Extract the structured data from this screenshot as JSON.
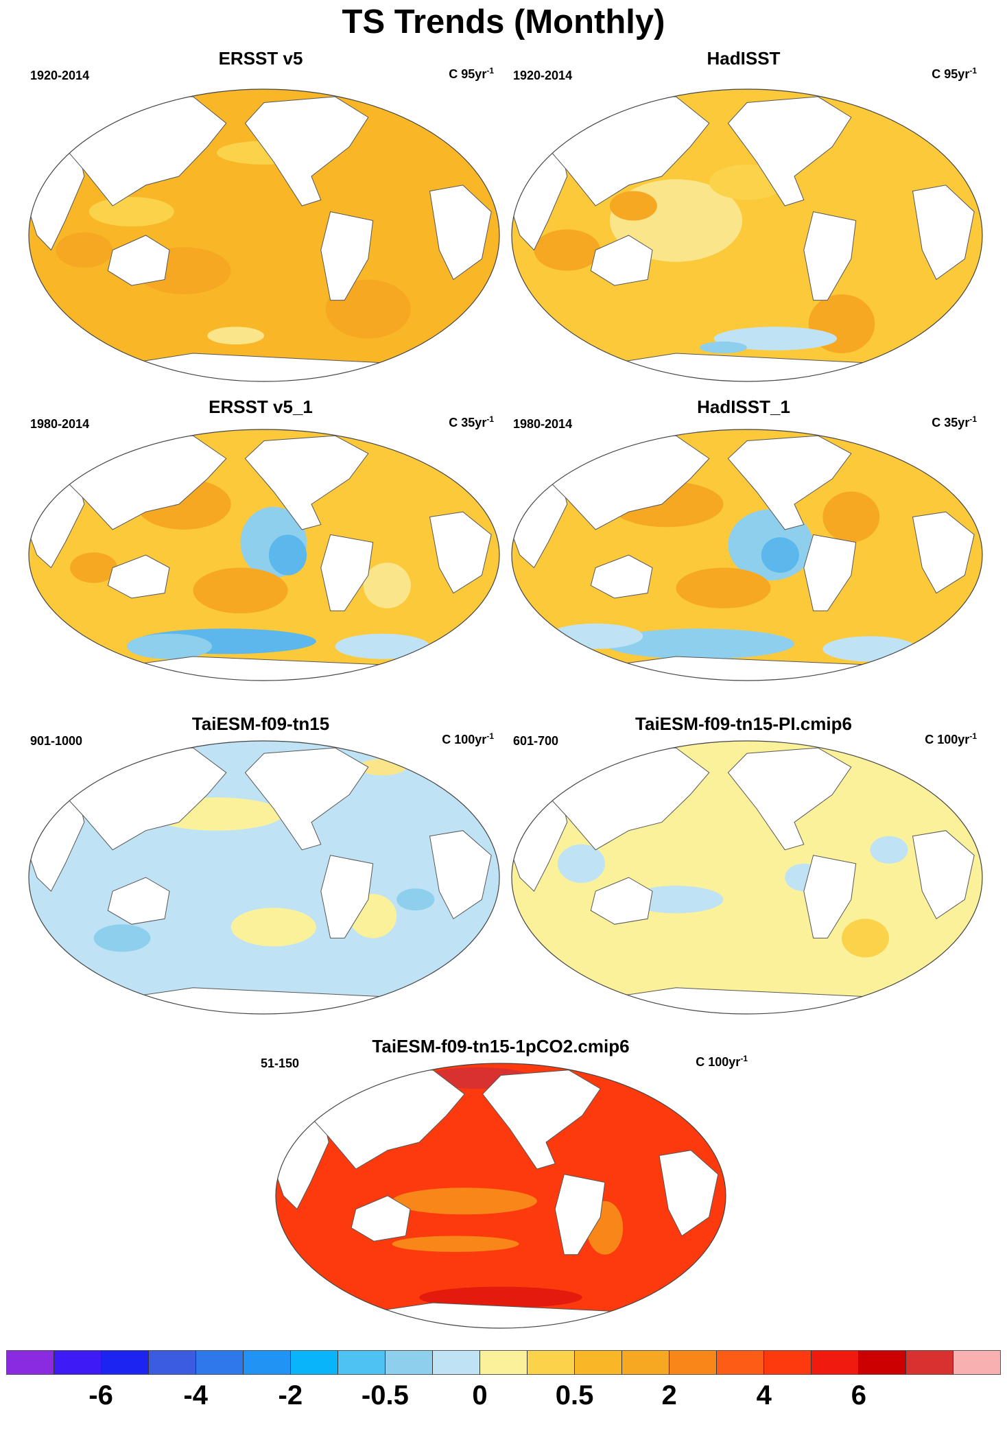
{
  "page": {
    "title": "TS Trends (Monthly)"
  },
  "panels": [
    {
      "title": "ERSST v5",
      "period": "1920-2014",
      "units": "C 95yr",
      "units_sup": "-1",
      "ocean_color": "#f9b627",
      "patches": [
        [
          "#fbd34a",
          0.22,
          0.42,
          0.09,
          0.05
        ],
        [
          "#fbd34a",
          0.5,
          0.22,
          0.1,
          0.04
        ],
        [
          "#f7a823",
          0.33,
          0.62,
          0.1,
          0.08
        ],
        [
          "#f7a823",
          0.72,
          0.75,
          0.09,
          0.1
        ],
        [
          "#8fcfee",
          0.64,
          0.13,
          0.03,
          0.06
        ],
        [
          "#f7a823",
          0.12,
          0.55,
          0.06,
          0.06
        ],
        [
          "#fbe58a",
          0.44,
          0.84,
          0.06,
          0.03
        ]
      ]
    },
    {
      "title": "HadISST",
      "period": "1920-2014",
      "units": "C 95yr",
      "units_sup": "-1",
      "ocean_color": "#fbc939",
      "patches": [
        [
          "#fbe58a",
          0.35,
          0.45,
          0.14,
          0.14
        ],
        [
          "#f7a823",
          0.12,
          0.55,
          0.07,
          0.07
        ],
        [
          "#f7a823",
          0.7,
          0.8,
          0.07,
          0.1
        ],
        [
          "#f7a823",
          0.26,
          0.4,
          0.05,
          0.05
        ],
        [
          "#bfe3f5",
          0.56,
          0.85,
          0.13,
          0.04
        ],
        [
          "#8fcfee",
          0.45,
          0.88,
          0.05,
          0.02
        ],
        [
          "#fbd34a",
          0.5,
          0.32,
          0.08,
          0.06
        ]
      ]
    },
    {
      "title": "ERSST v5_1",
      "period": "1980-2014",
      "units": "C 35yr",
      "units_sup": "-1",
      "ocean_color": "#fbc939",
      "patches": [
        [
          "#f7a823",
          0.33,
          0.3,
          0.1,
          0.1
        ],
        [
          "#8fcfee",
          0.52,
          0.45,
          0.07,
          0.14
        ],
        [
          "#5bb7ec",
          0.55,
          0.5,
          0.04,
          0.08
        ],
        [
          "#f7a823",
          0.45,
          0.64,
          0.1,
          0.09
        ],
        [
          "#5bb7ec",
          0.42,
          0.84,
          0.19,
          0.05
        ],
        [
          "#8fcfee",
          0.3,
          0.86,
          0.09,
          0.05
        ],
        [
          "#bfe3f5",
          0.75,
          0.86,
          0.1,
          0.05
        ],
        [
          "#fbe58a",
          0.76,
          0.62,
          0.05,
          0.09
        ],
        [
          "#f7a823",
          0.14,
          0.55,
          0.05,
          0.06
        ]
      ]
    },
    {
      "title": "HadISST_1",
      "period": "1980-2014",
      "units": "C 35yr",
      "units_sup": "-1",
      "ocean_color": "#fbc939",
      "patches": [
        [
          "#f7a823",
          0.33,
          0.3,
          0.12,
          0.09
        ],
        [
          "#8fcfee",
          0.55,
          0.46,
          0.09,
          0.14
        ],
        [
          "#5bb7ec",
          0.57,
          0.5,
          0.04,
          0.07
        ],
        [
          "#f7a823",
          0.45,
          0.63,
          0.1,
          0.08
        ],
        [
          "#8fcfee",
          0.4,
          0.85,
          0.2,
          0.06
        ],
        [
          "#bfe3f5",
          0.18,
          0.82,
          0.1,
          0.05
        ],
        [
          "#bfe3f5",
          0.76,
          0.87,
          0.1,
          0.05
        ],
        [
          "#f7a823",
          0.72,
          0.35,
          0.06,
          0.1
        ]
      ]
    },
    {
      "title": "TaiESM-f09-tn15",
      "period": "901-1000",
      "units": "C 100yr",
      "units_sup": "-1",
      "ocean_color": "#bfe3f5",
      "patches": [
        [
          "#fbf19b",
          0.4,
          0.27,
          0.14,
          0.06
        ],
        [
          "#fbf19b",
          0.1,
          0.15,
          0.12,
          0.05
        ],
        [
          "#fbf19b",
          0.52,
          0.68,
          0.09,
          0.07
        ],
        [
          "#fbf19b",
          0.73,
          0.64,
          0.05,
          0.08
        ],
        [
          "#8fcfee",
          0.2,
          0.72,
          0.06,
          0.05
        ],
        [
          "#8fcfee",
          0.82,
          0.58,
          0.04,
          0.04
        ],
        [
          "#fbe58a",
          0.75,
          0.1,
          0.05,
          0.03
        ]
      ]
    },
    {
      "title": "TaiESM-f09-tn15-PI.cmip6",
      "period": "601-700",
      "units": "C 100yr",
      "units_sup": "-1",
      "ocean_color": "#fbf19b",
      "patches": [
        [
          "#bfe3f5",
          0.35,
          0.58,
          0.1,
          0.05
        ],
        [
          "#bfe3f5",
          0.15,
          0.45,
          0.05,
          0.07
        ],
        [
          "#bfe3f5",
          0.62,
          0.5,
          0.04,
          0.05
        ],
        [
          "#fbd34a",
          0.75,
          0.72,
          0.05,
          0.07
        ],
        [
          "#fbd34a",
          0.25,
          0.28,
          0.06,
          0.04
        ],
        [
          "#bfe3f5",
          0.8,
          0.4,
          0.04,
          0.05
        ]
      ]
    },
    {
      "title": "TaiESM-f09-tn15-1pCO2.cmip6",
      "period": "51-150",
      "units": "C 100yr",
      "units_sup": "-1",
      "ocean_color": "#fc3a0e",
      "patches": [
        [
          "#f98619",
          0.42,
          0.52,
          0.16,
          0.05
        ],
        [
          "#f98619",
          0.4,
          0.68,
          0.14,
          0.03
        ],
        [
          "#f98619",
          0.73,
          0.62,
          0.04,
          0.1
        ],
        [
          "#e31a0c",
          0.22,
          0.15,
          0.16,
          0.06
        ],
        [
          "#d93030",
          0.45,
          0.06,
          0.12,
          0.04
        ],
        [
          "#e31a0c",
          0.5,
          0.88,
          0.18,
          0.04
        ],
        [
          "#fbc939",
          0.66,
          0.13,
          0.02,
          0.03
        ]
      ]
    }
  ],
  "colorbar": {
    "colors": [
      "#8a2be2",
      "#3e1af5",
      "#1c24f2",
      "#3b5be0",
      "#2f78ec",
      "#2193f5",
      "#0ab4fa",
      "#4ec3f3",
      "#8fcfee",
      "#bfe3f5",
      "#fbf19b",
      "#fbd34a",
      "#f9b627",
      "#f7a823",
      "#f98619",
      "#fc5c15",
      "#fc3a0e",
      "#f01a0f",
      "#cc0000",
      "#d93030",
      "#f9b0b0"
    ],
    "labels": [
      "-6",
      "-4",
      "-2",
      "-0.5",
      "0",
      "0.5",
      "2",
      "4",
      "6"
    ]
  }
}
